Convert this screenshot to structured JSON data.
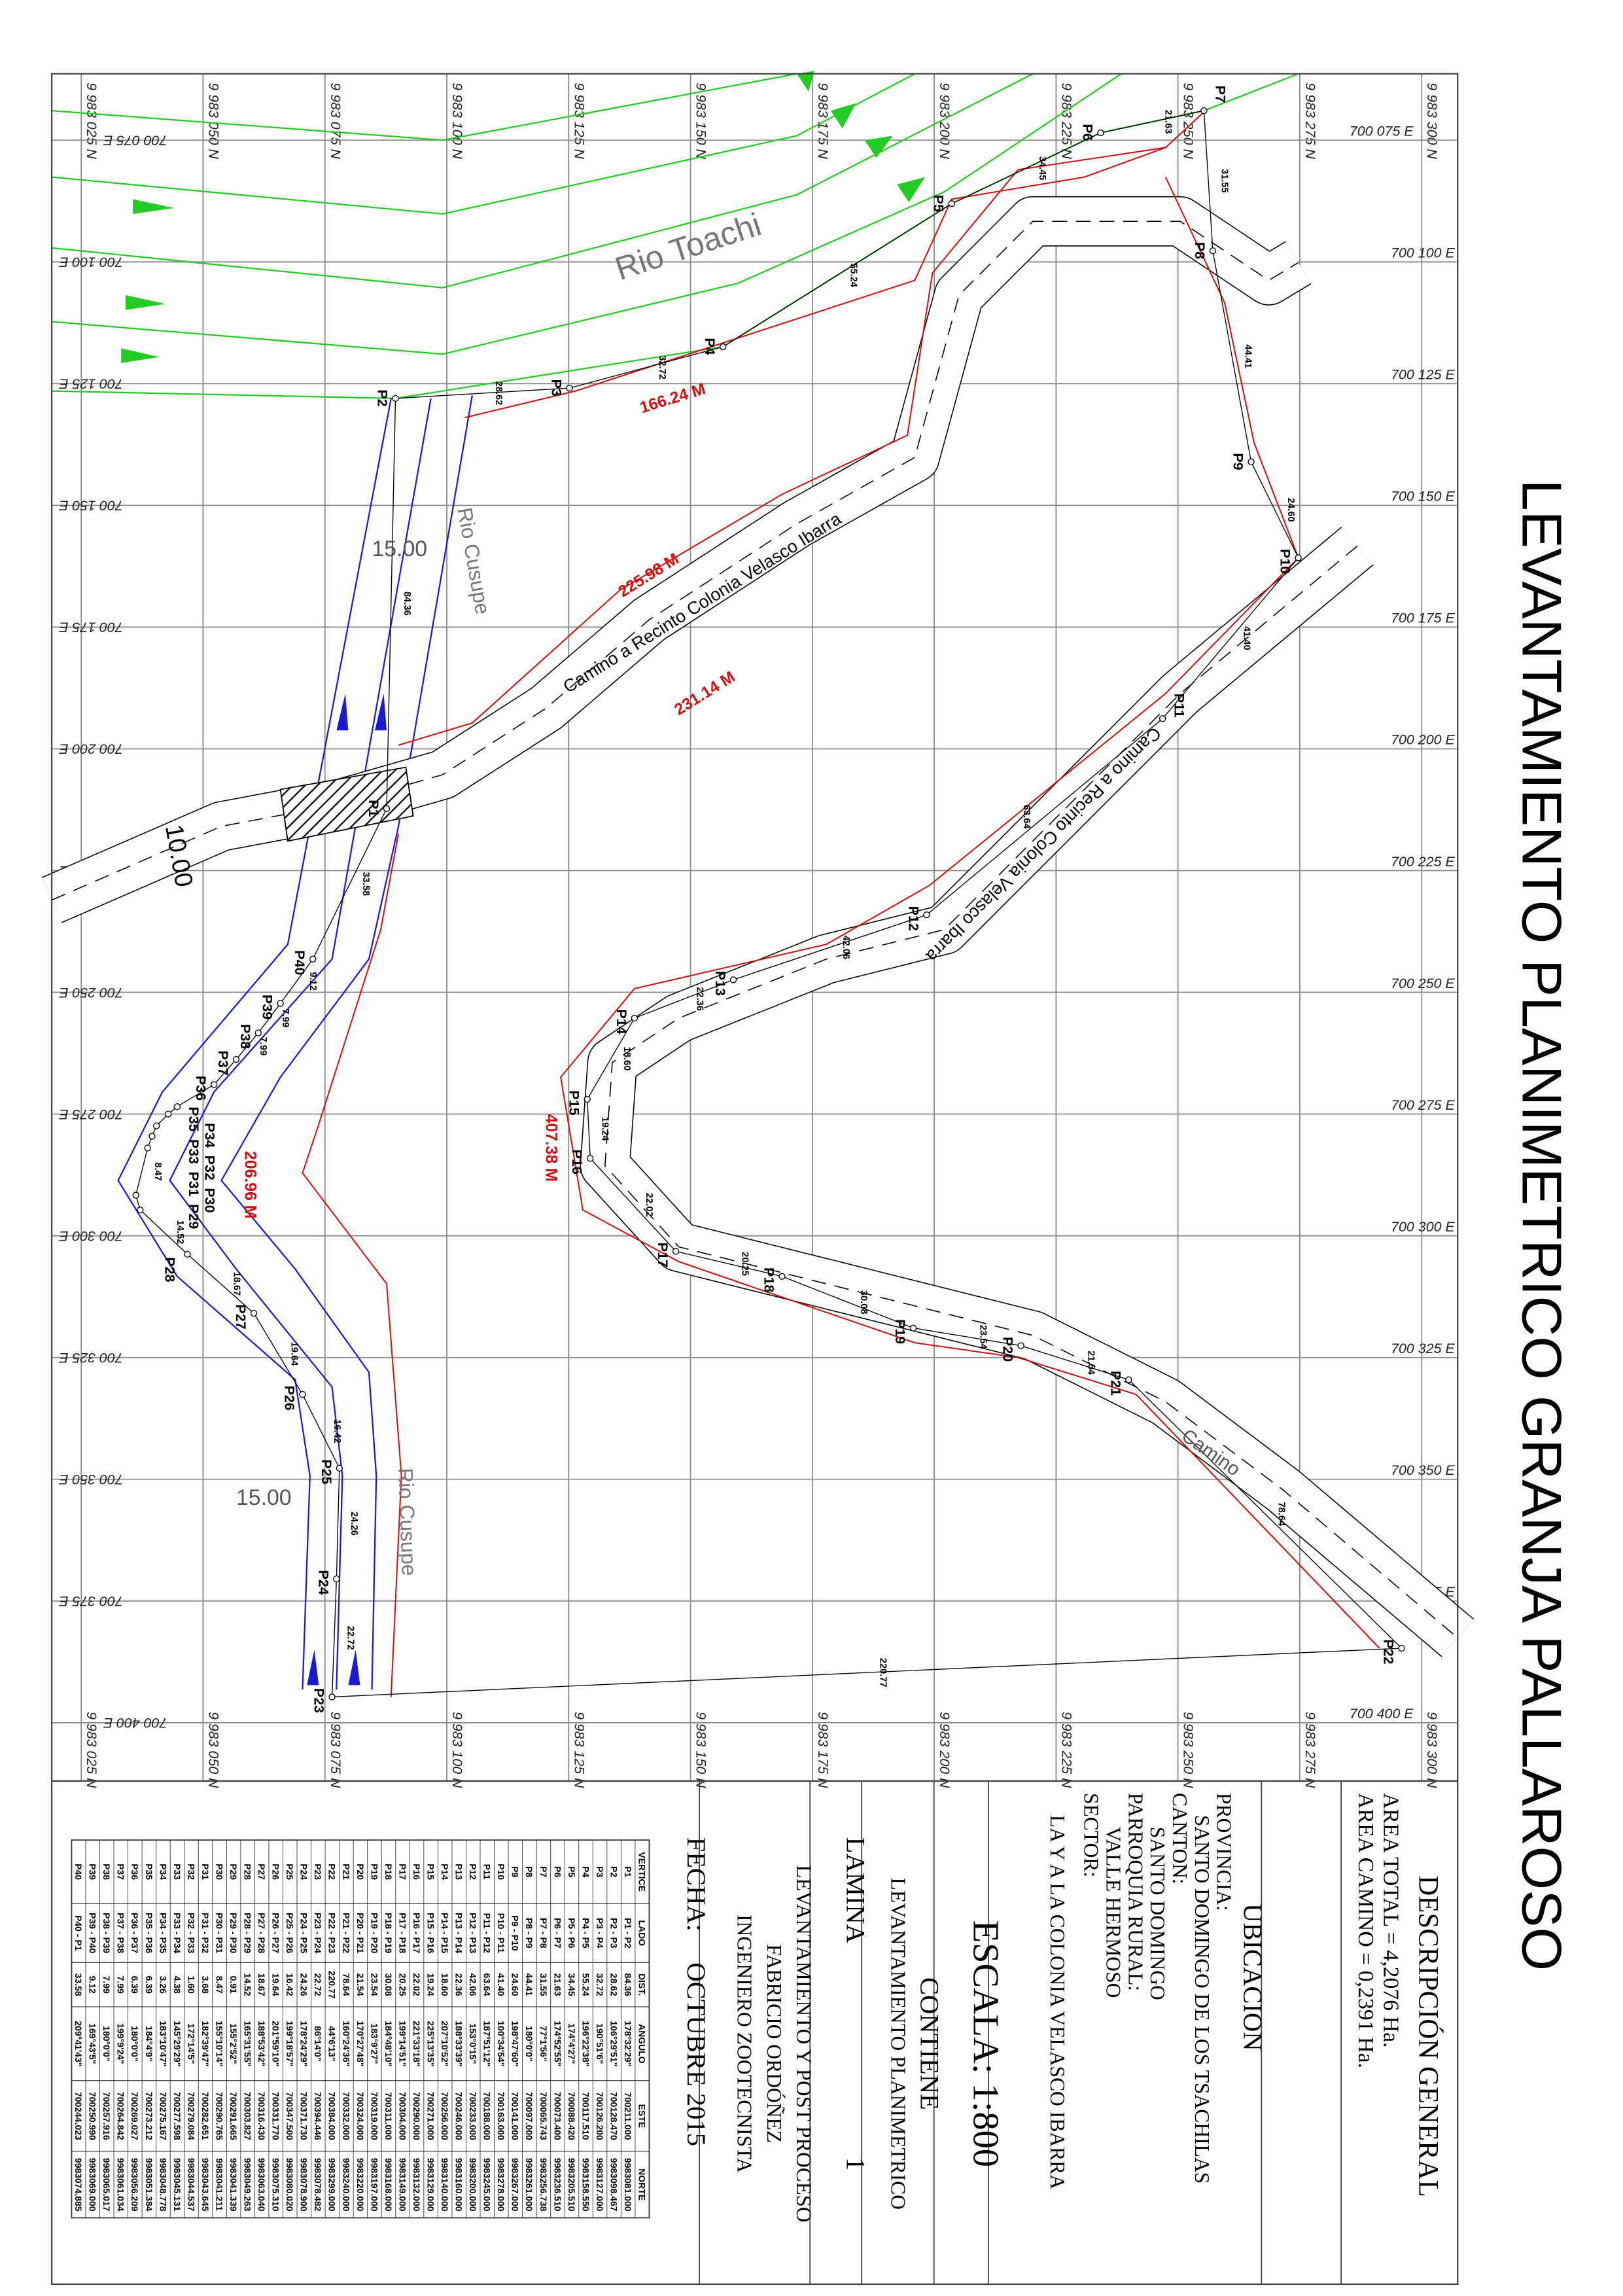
{
  "title": "LEVANTAMIENTO PLANIMETRICO GRANJA PALLAROSO",
  "colors": {
    "road": "#000000",
    "boundary": "#d01010",
    "river_cusupe": "#1a1ad0",
    "river_toachi": "#22cc22",
    "grid": "#8a8a8a"
  },
  "grid": {
    "north_labels": [
      "9 983 025 N",
      "9 983 050 N",
      "9 983 075 N",
      "9 983 100 N",
      "9 983 125 N",
      "9 983 150 N",
      "9 983 175 N",
      "9 983 200 N",
      "9 983 225 N",
      "9 983 250 N",
      "9 983 275 N",
      "9 983 300 N"
    ],
    "east_labels": [
      "700 075 E",
      "700 100 E",
      "700 125 E",
      "700 150 E",
      "700 175 E",
      "700 200 E",
      "700 225 E",
      "700 250 E",
      "700 275 E",
      "700 300 E",
      "700 325 E",
      "700 350 E",
      "700 375 E",
      "700 400 E"
    ]
  },
  "map": {
    "road_label_1": "Camino a Recinto Colonia Velasco Ibarra",
    "road_label_2": "Camino a Recinto Colonia Velasco Ibarra",
    "road_label_3": "Camino",
    "river_toachi": "Rio Toachi",
    "river_cusupe_1": "Rio Cusupe",
    "river_cusupe_2": "Rio Cusupe",
    "width_1": "15.00",
    "width_2": "15.00",
    "width_road": "10.00",
    "red_labels": [
      "166.24 M",
      "225.98 M",
      "231.14 M",
      "407.38 M",
      "206.96 M"
    ]
  },
  "title_block": {
    "descripcion": "DESCRIPCIÓN GENERAL",
    "area_total": "AREA TOTAL = 4,2076 Ha.",
    "area_camino": "AREA CAMINO = 0,2391 Ha.",
    "ubicacion": "UBICACION",
    "provincia_label": "PROVINCIA:",
    "provincia": "SANTO DOMINGO DE LOS TSACHILAS",
    "canton_label": "CANTON:",
    "canton": "SANTO DOMINGO",
    "parroquia_label": "PARROQUIA RURAL:",
    "parroquia": "VALLE HERMOSO",
    "sector_label": "SECTOR:",
    "sector": "LA Y A LA COLONIA VELASCO IBARRA",
    "escala": "ESCALA:  1:800",
    "contiene": "CONTIENE",
    "contiene_value": "LEVANTAMIENTO PLANIMETRICO",
    "lamina": "LAMINA",
    "lamina_value": "1",
    "autor_1": "LEVANTAMIENTO Y POST PROCESO",
    "autor_2": "FABRICIO ORDÓÑEZ",
    "autor_3": "INGENIERO ZOOTECNISTA",
    "fecha_label": "FECHA:",
    "fecha": "OCTUBRE 2015"
  },
  "table": {
    "headers": [
      "VERTICE",
      "LADO",
      "DIST.",
      "ANGULO",
      "ESTE",
      "NORTE"
    ],
    "rows": [
      [
        "P1",
        "P1 - P2",
        "84.36",
        "178°32'29\"",
        "700211.000",
        "9983081.000"
      ],
      [
        "P2",
        "P2 - P3",
        "28.62",
        "106°29'51\"",
        "700128.470",
        "9983098.467"
      ],
      [
        "P3",
        "P3 - P4",
        "32.72",
        "190°51'6\"",
        "700126.200",
        "9983127.000"
      ],
      [
        "P4",
        "P4 - P5",
        "55.24",
        "196°22'38\"",
        "700117.510",
        "9983158.550"
      ],
      [
        "P5",
        "P5 - P6",
        "34.45",
        "174°4'27\"",
        "700088.420",
        "9983205.510"
      ],
      [
        "P6",
        "P6 - P7",
        "21.63",
        "174°52'55\"",
        "700073.400",
        "9983236.510"
      ],
      [
        "P7",
        "P7 - P8",
        "31.55",
        "77°1'56\"",
        "700065.743",
        "9983256.738"
      ],
      [
        "P8",
        "P8 - P9",
        "44.41",
        "180°0'0\"",
        "700097.000",
        "9983261.000"
      ],
      [
        "P9",
        "P9 - P10",
        "24.60",
        "198°47'60\"",
        "700141.000",
        "9983267.000"
      ],
      [
        "P10",
        "P10 - P11",
        "41.40",
        "100°34'54\"",
        "700163.000",
        "9983278.000"
      ],
      [
        "P11",
        "P11 - P12",
        "63.64",
        "187°51'12\"",
        "700188.000",
        "9983245.000"
      ],
      [
        "P12",
        "P12 - P13",
        "42.06",
        "153°0'15\"",
        "700233.000",
        "9983200.000"
      ],
      [
        "P13",
        "P13 - P14",
        "22.36",
        "188°33'39\"",
        "700246.000",
        "9983160.000"
      ],
      [
        "P14",
        "P14 - P15",
        "18.60",
        "207°10'52\"",
        "700256.000",
        "9983140.000"
      ],
      [
        "P15",
        "P15 - P16",
        "19.24",
        "225°13'35\"",
        "700271.000",
        "9983129.000"
      ],
      [
        "P16",
        "P16 - P17",
        "22.02",
        "221°33'18\"",
        "700290.000",
        "9983132.000"
      ],
      [
        "P17",
        "P17 - P18",
        "20.25",
        "199°14'51\"",
        "700304.000",
        "9983149.000"
      ],
      [
        "P18",
        "P18 - P19",
        "30.08",
        "184°48'10\"",
        "700311.000",
        "9983168.000"
      ],
      [
        "P19",
        "P19 - P20",
        "23.54",
        "183°9'27\"",
        "700319.000",
        "9983197.000"
      ],
      [
        "P20",
        "P20 - P21",
        "21.54",
        "170°27'48\"",
        "700324.000",
        "9983220.000"
      ],
      [
        "P21",
        "P21 - P22",
        "78.64",
        "160°24'36\"",
        "700332.000",
        "9983240.000"
      ],
      [
        "P22",
        "P22 - P23",
        "220.77",
        "44°6'13\"",
        "700384.000",
        "9983299.000"
      ],
      [
        "P23",
        "P23 - P24",
        "22.72",
        "86°14'0\"",
        "700394.446",
        "9983078.482"
      ],
      [
        "P24",
        "P24 - P25",
        "24.26",
        "178°24'29\"",
        "700371.730",
        "9983078.900"
      ],
      [
        "P25",
        "P25 - P26",
        "16.42",
        "199°18'57\"",
        "700347.500",
        "9983080.020"
      ],
      [
        "P26",
        "P26 - P27",
        "19.64",
        "201°59'10\"",
        "700331.770",
        "9983075.310"
      ],
      [
        "P27",
        "P27 - P28",
        "18.67",
        "188°53'42\"",
        "700316.430",
        "9983063.040"
      ],
      [
        "P28",
        "P28 - P29",
        "14.52",
        "165°31'55\"",
        "700303.827",
        "9983049.263"
      ],
      [
        "P29",
        "P29 - P30",
        "0.91",
        "155°2'52\"",
        "700291.665",
        "9983041.339"
      ],
      [
        "P30",
        "P30 - P31",
        "8.47",
        "155°10'14\"",
        "700290.765",
        "9983041.211"
      ],
      [
        "P31",
        "P31 - P32",
        "3.68",
        "182°39'47\"",
        "700282.651",
        "9983043.645"
      ],
      [
        "P32",
        "P32 - P33",
        "1.60",
        "172°14'5\"",
        "700279.084",
        "9983044.537"
      ],
      [
        "P33",
        "P33 - P34",
        "4.38",
        "145°29'29\"",
        "700277.598",
        "9983045.131"
      ],
      [
        "P34",
        "P34 - P35",
        "3.26",
        "183°10'47\"",
        "700275.167",
        "9983048.778"
      ],
      [
        "P35",
        "P35 - P36",
        "6.39",
        "184°4'9\"",
        "700273.212",
        "9983051.384"
      ],
      [
        "P36",
        "P36 - P37",
        "6.39",
        "180°0'0\"",
        "700269.027",
        "9983056.209"
      ],
      [
        "P37",
        "P37 - P38",
        "7.99",
        "199°9'24\"",
        "700264.842",
        "9983061.034"
      ],
      [
        "P38",
        "P38 - P39",
        "7.99",
        "180°0'0\"",
        "700257.916",
        "9983065.017"
      ],
      [
        "P39",
        "P39 - P40",
        "9.12",
        "169°43'5\"",
        "700250.990",
        "9983069.000"
      ],
      [
        "P40",
        "P40 - P1",
        "33.58",
        "209°41'43\"",
        "700244.023",
        "9983074.885"
      ]
    ]
  }
}
